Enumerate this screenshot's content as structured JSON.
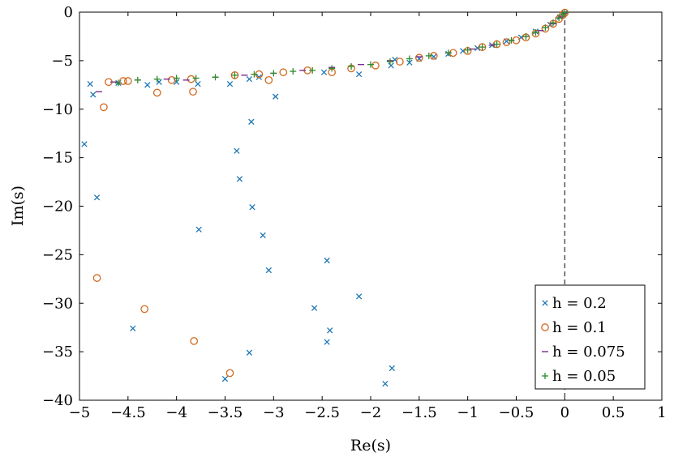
{
  "chart_data": {
    "type": "scatter",
    "xlabel": "Re(s)",
    "ylabel": "Im(s)",
    "xlim": [
      -5,
      1
    ],
    "ylim": [
      -40,
      0
    ],
    "xticks": [
      -5,
      -4.5,
      -4,
      -3.5,
      -3,
      -2.5,
      -2,
      -1.5,
      -1,
      -0.5,
      0,
      0.5,
      1
    ],
    "yticks": [
      0,
      -5,
      -10,
      -15,
      -20,
      -25,
      -30,
      -35,
      -40
    ],
    "xtick_labels": [
      "−5",
      "−4.5",
      "−4",
      "−3.5",
      "−3",
      "−2.5",
      "−2",
      "−1.5",
      "−1",
      "−0.5",
      "0",
      "0.5",
      "1"
    ],
    "ytick_labels": [
      "0",
      "−5",
      "−10",
      "−15",
      "−20",
      "−25",
      "−30",
      "−35",
      "−40"
    ],
    "grid": false,
    "legend_position": "bottom-right",
    "reference_line": {
      "x": 0,
      "style": "dashed",
      "color": "#555555"
    },
    "series": [
      {
        "name": "h = 0.2",
        "marker": "x",
        "color": "#1f77b4",
        "points": [
          [
            -4.95,
            -13.6
          ],
          [
            -4.89,
            -7.4
          ],
          [
            -4.86,
            -8.5
          ],
          [
            -4.82,
            -19.1
          ],
          [
            -4.6,
            -7.3
          ],
          [
            -4.45,
            -32.6
          ],
          [
            -4.3,
            -7.5
          ],
          [
            -4.18,
            -7.2
          ],
          [
            -4.0,
            -7.2
          ],
          [
            -3.78,
            -7.4
          ],
          [
            -3.77,
            -22.4
          ],
          [
            -3.5,
            -37.8
          ],
          [
            -3.45,
            -7.4
          ],
          [
            -3.38,
            -14.3
          ],
          [
            -3.35,
            -17.2
          ],
          [
            -3.25,
            -6.9
          ],
          [
            -3.23,
            -11.3
          ],
          [
            -3.22,
            -20.1
          ],
          [
            -3.25,
            -35.1
          ],
          [
            -3.15,
            -6.7
          ],
          [
            -3.11,
            -23.0
          ],
          [
            -3.05,
            -26.6
          ],
          [
            -2.98,
            -8.7
          ],
          [
            -2.58,
            -30.5
          ],
          [
            -2.48,
            -6.2
          ],
          [
            -2.45,
            -25.6
          ],
          [
            -2.45,
            -34.0
          ],
          [
            -2.42,
            -32.8
          ],
          [
            -2.12,
            -29.3
          ],
          [
            -2.12,
            -6.4
          ],
          [
            -1.85,
            -38.3
          ],
          [
            -1.79,
            -5.5
          ],
          [
            -1.78,
            -36.7
          ],
          [
            -1.75,
            -4.9
          ],
          [
            -1.6,
            -5.2
          ],
          [
            -1.5,
            -4.8
          ],
          [
            -1.35,
            -4.6
          ],
          [
            -1.2,
            -4.3
          ],
          [
            -1.05,
            -4.0
          ],
          [
            -0.9,
            -3.7
          ],
          [
            -0.75,
            -3.4
          ],
          [
            -0.6,
            -3.0
          ],
          [
            -0.45,
            -2.6
          ],
          [
            -0.3,
            -2.0
          ],
          [
            -0.15,
            -1.3
          ],
          [
            -0.05,
            -0.5
          ],
          [
            0.0,
            -0.1
          ]
        ]
      },
      {
        "name": "h = 0.1",
        "marker": "o",
        "color": "#d2691e",
        "points": [
          [
            -4.82,
            -27.4
          ],
          [
            -4.75,
            -9.8
          ],
          [
            -4.7,
            -7.2
          ],
          [
            -4.55,
            -7.1
          ],
          [
            -4.5,
            -7.1
          ],
          [
            -4.33,
            -30.6
          ],
          [
            -4.2,
            -8.3
          ],
          [
            -4.05,
            -7.0
          ],
          [
            -3.85,
            -6.9
          ],
          [
            -3.83,
            -8.2
          ],
          [
            -3.82,
            -33.9
          ],
          [
            -3.45,
            -37.2
          ],
          [
            -3.4,
            -6.5
          ],
          [
            -3.15,
            -6.4
          ],
          [
            -3.05,
            -7.0
          ],
          [
            -2.9,
            -6.2
          ],
          [
            -2.65,
            -6.0
          ],
          [
            -2.4,
            -6.2
          ],
          [
            -2.2,
            -5.8
          ],
          [
            -1.95,
            -5.5
          ],
          [
            -1.7,
            -5.1
          ],
          [
            -1.5,
            -4.7
          ],
          [
            -1.35,
            -4.5
          ],
          [
            -1.15,
            -4.2
          ],
          [
            -1.0,
            -4.0
          ],
          [
            -0.85,
            -3.6
          ],
          [
            -0.7,
            -3.3
          ],
          [
            -0.6,
            -3.1
          ],
          [
            -0.5,
            -2.9
          ],
          [
            -0.4,
            -2.6
          ],
          [
            -0.3,
            -2.2
          ],
          [
            -0.2,
            -1.7
          ],
          [
            -0.12,
            -1.2
          ],
          [
            -0.06,
            -0.7
          ],
          [
            -0.02,
            -0.3
          ],
          [
            0.0,
            -0.05
          ]
        ]
      },
      {
        "name": "h = 0.075",
        "marker": "dash",
        "color": "#7b2d8e",
        "points": [
          [
            -4.8,
            -8.2
          ],
          [
            -4.65,
            -7.2
          ],
          [
            -4.4,
            -7.0
          ],
          [
            -4.1,
            -6.9
          ],
          [
            -3.9,
            -7.0
          ],
          [
            -3.6,
            -6.7
          ],
          [
            -3.3,
            -6.5
          ],
          [
            -3.0,
            -6.3
          ],
          [
            -2.7,
            -6.0
          ],
          [
            -2.4,
            -5.7
          ],
          [
            -2.1,
            -5.4
          ],
          [
            -1.8,
            -5.0
          ],
          [
            -1.5,
            -4.6
          ],
          [
            -1.2,
            -4.2
          ],
          [
            -0.95,
            -3.8
          ],
          [
            -0.75,
            -3.4
          ],
          [
            -0.55,
            -2.9
          ],
          [
            -0.4,
            -2.5
          ],
          [
            -0.25,
            -1.9
          ],
          [
            -0.12,
            -1.2
          ],
          [
            -0.04,
            -0.5
          ],
          [
            0.0,
            -0.1
          ]
        ]
      },
      {
        "name": "h = 0.05",
        "marker": "plus",
        "color": "#2e8b2e",
        "points": [
          [
            -4.6,
            -7.3
          ],
          [
            -4.4,
            -7.0
          ],
          [
            -4.2,
            -6.9
          ],
          [
            -4.0,
            -6.8
          ],
          [
            -3.8,
            -6.8
          ],
          [
            -3.6,
            -6.7
          ],
          [
            -3.4,
            -6.5
          ],
          [
            -3.2,
            -6.4
          ],
          [
            -3.0,
            -6.3
          ],
          [
            -2.8,
            -6.1
          ],
          [
            -2.6,
            -6.0
          ],
          [
            -2.4,
            -5.8
          ],
          [
            -2.2,
            -5.6
          ],
          [
            -2.0,
            -5.4
          ],
          [
            -1.8,
            -5.1
          ],
          [
            -1.6,
            -4.8
          ],
          [
            -1.4,
            -4.5
          ],
          [
            -1.2,
            -4.2
          ],
          [
            -1.0,
            -3.9
          ],
          [
            -0.85,
            -3.6
          ],
          [
            -0.7,
            -3.3
          ],
          [
            -0.55,
            -2.9
          ],
          [
            -0.4,
            -2.5
          ],
          [
            -0.3,
            -2.1
          ],
          [
            -0.2,
            -1.6
          ],
          [
            -0.12,
            -1.1
          ],
          [
            -0.06,
            -0.6
          ],
          [
            -0.02,
            -0.25
          ],
          [
            0.0,
            -0.05
          ]
        ]
      }
    ]
  },
  "legend": {
    "labels": [
      "h = 0.2",
      "h = 0.1",
      "h = 0.075",
      "h = 0.05"
    ]
  }
}
